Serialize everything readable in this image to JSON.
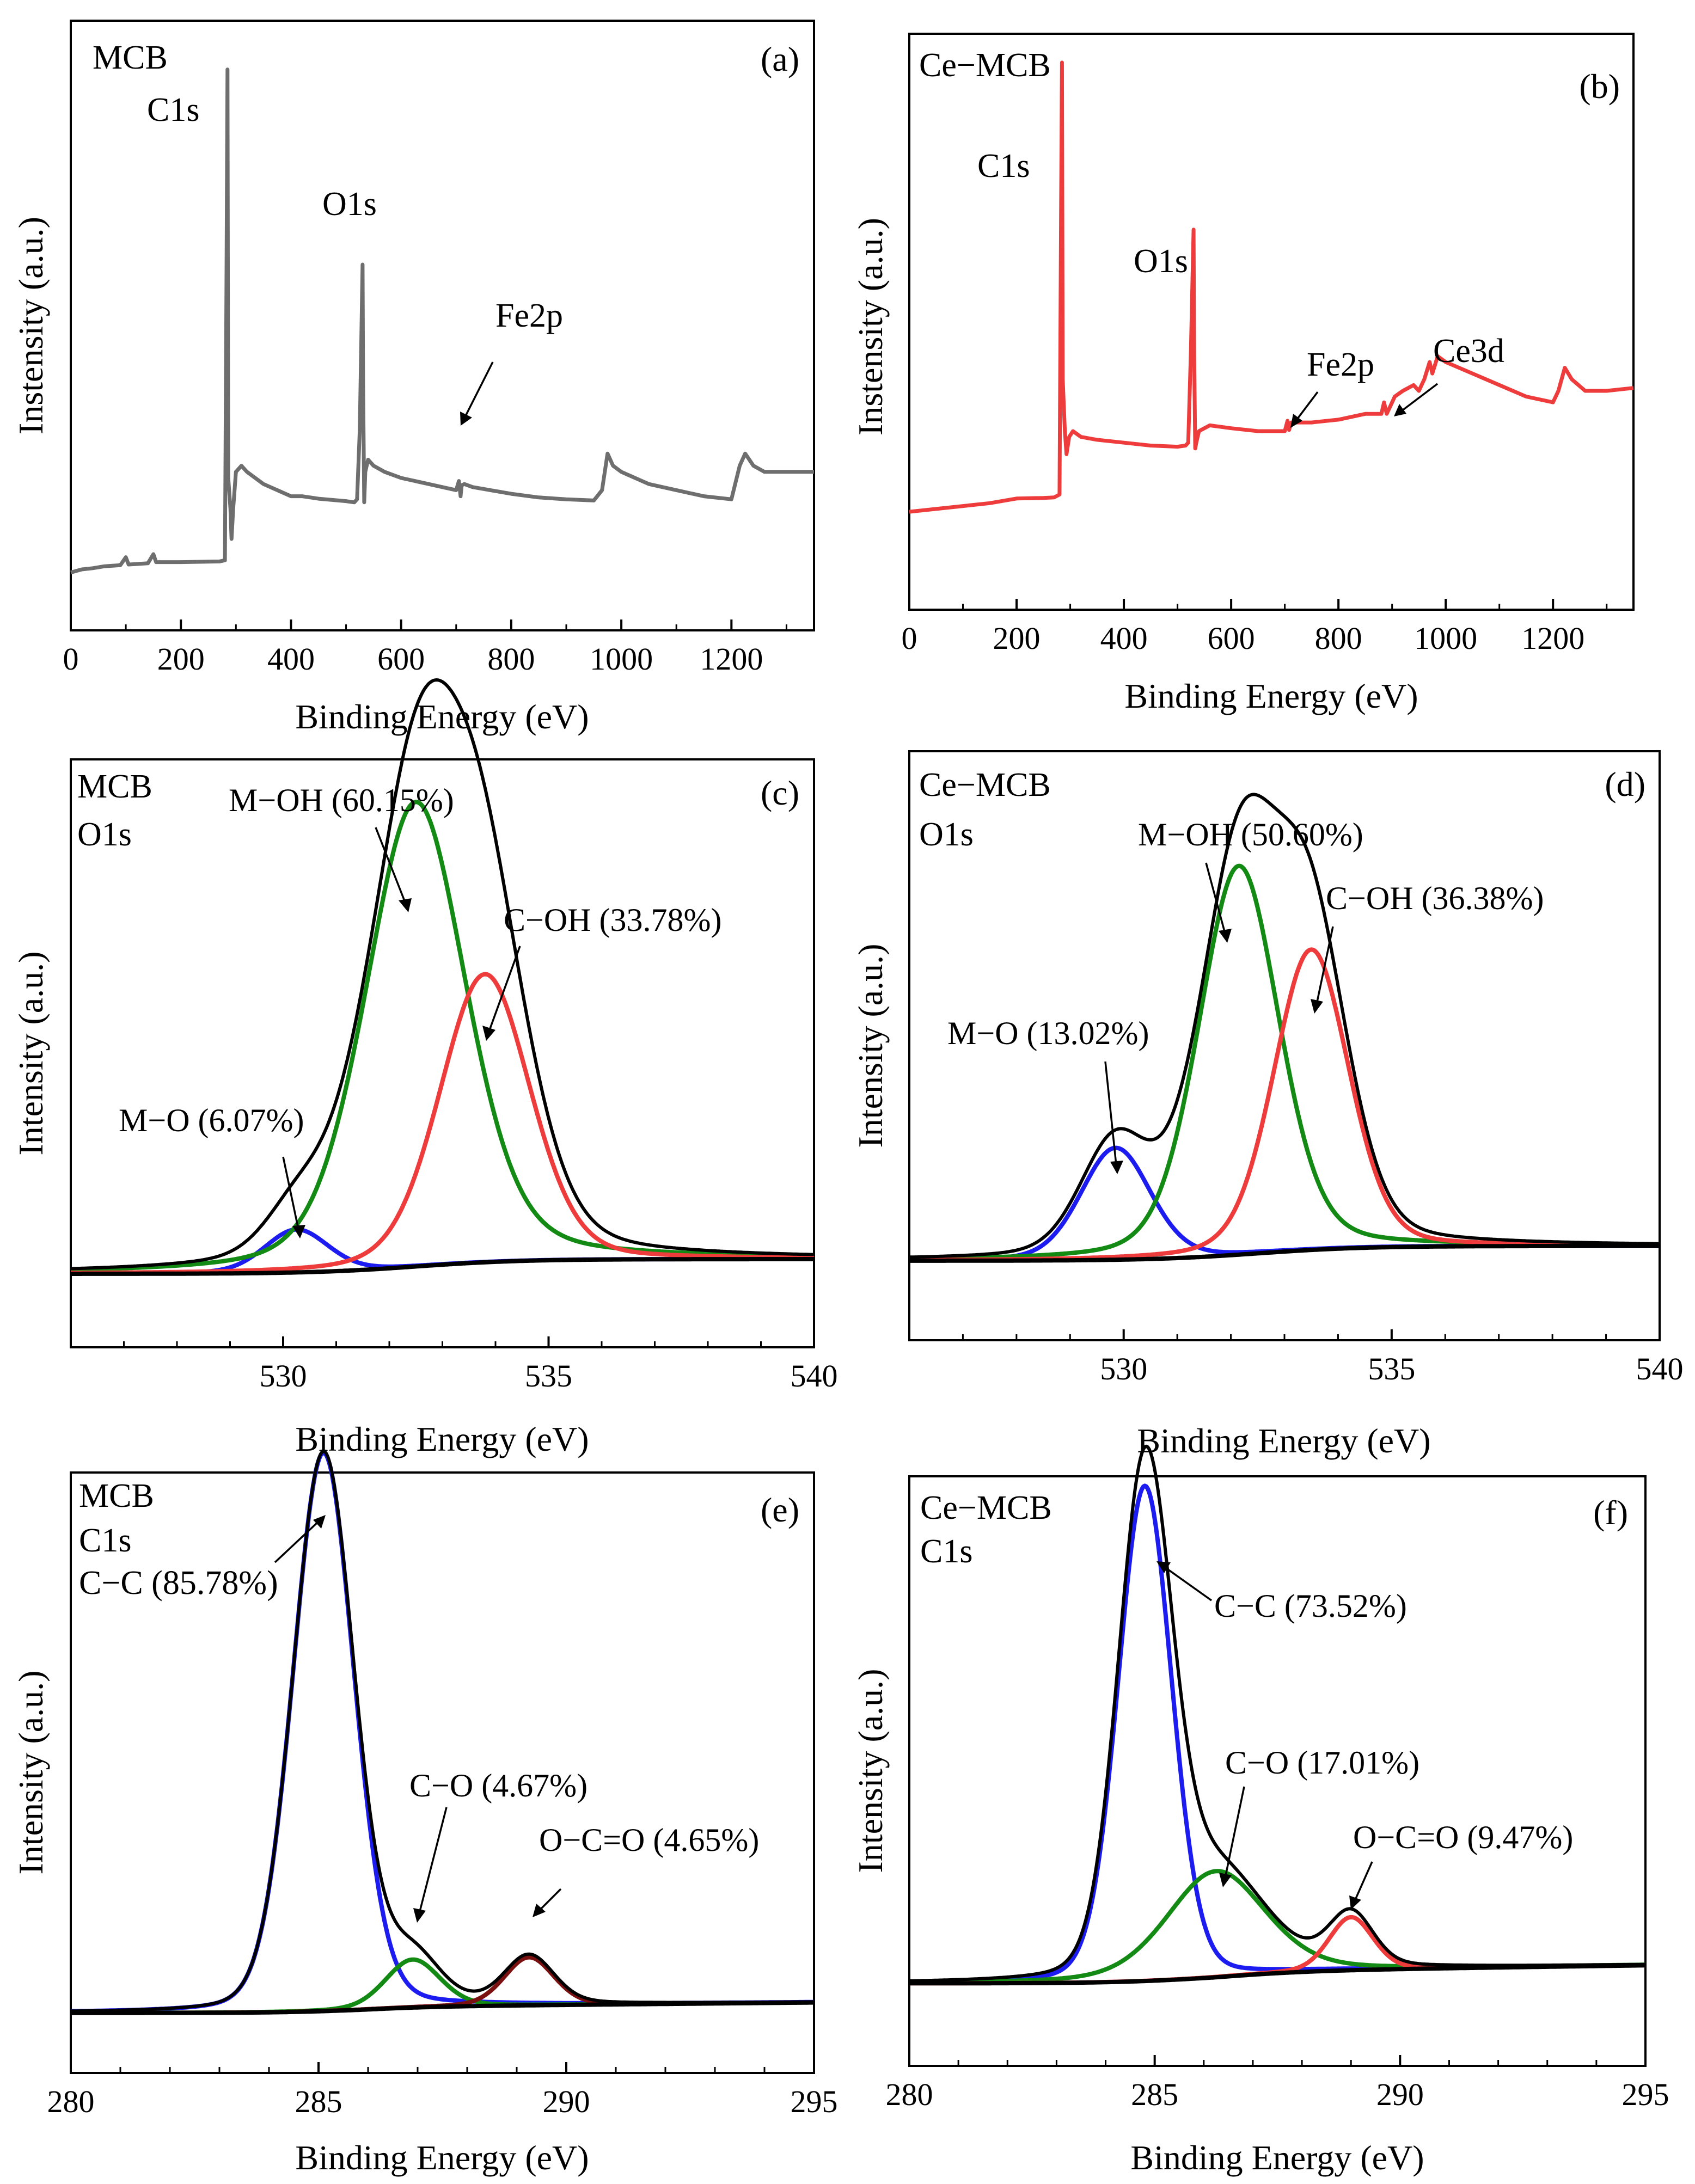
{
  "figure": {
    "panel_labels": [
      "(a)",
      "(b)",
      "(c)",
      "(d)",
      "(e)",
      "(f)"
    ],
    "colors": {
      "gray": "#6e6e6e",
      "red": "#ee3b3b",
      "green": "#138a13",
      "blue": "#1c1cf0",
      "black": "#000000",
      "darkred": "#7a1010"
    }
  },
  "chart_data": [
    {
      "id": "a",
      "type": "line",
      "label": "(a)",
      "titles": [
        "MCB"
      ],
      "xlabel": "Binding Energy (eV)",
      "ylabel": "Instensity (a.u.)",
      "xlim": [
        0,
        1350
      ],
      "ylim": [
        0,
        100
      ],
      "xticks": [
        0,
        200,
        400,
        600,
        800,
        1000,
        1200
      ],
      "xtick_labels": [
        "0",
        "200",
        "400",
        "600",
        "800",
        "1000",
        "1200"
      ],
      "minor_step": 100,
      "minor_from": 100,
      "series": [
        {
          "name": "MCB survey",
          "color": "#6e6e6e",
          "width": 7,
          "x": [
            0,
            20,
            40,
            60,
            90,
            100,
            105,
            140,
            150,
            155,
            200,
            270,
            280,
            283,
            284.6,
            286,
            290,
            292,
            295,
            300,
            310,
            320,
            350,
            400,
            420,
            450,
            500,
            515,
            520,
            525,
            530,
            531,
            533,
            535,
            540,
            550,
            570,
            600,
            650,
            700,
            705,
            708,
            710,
            715,
            730,
            800,
            850,
            900,
            950,
            965,
            975,
            985,
            1000,
            1050,
            1100,
            1150,
            1200,
            1215,
            1225,
            1240,
            1260,
            1300,
            1350
          ],
          "y": [
            9.5,
            10,
            10.2,
            10.5,
            10.7,
            12,
            10.8,
            11,
            12.5,
            11.2,
            11.2,
            11.3,
            11.5,
            60,
            92,
            25,
            20,
            15,
            20,
            26,
            27,
            26,
            24,
            22,
            22,
            21.6,
            21.2,
            21,
            21.5,
            33,
            60,
            40,
            21,
            26,
            28,
            27,
            26,
            25,
            24,
            23,
            24.5,
            22,
            23.8,
            24,
            23.5,
            22.4,
            21.8,
            21.5,
            21.3,
            23,
            29,
            27,
            26,
            24,
            23,
            22,
            21.5,
            27,
            29,
            27,
            26,
            26,
            26
          ]
        }
      ],
      "annotations": [
        {
          "text": "C1s"
        },
        {
          "text": "O1s"
        },
        {
          "text": "Fe2p"
        }
      ]
    },
    {
      "id": "b",
      "type": "line",
      "label": "(b)",
      "titles": [
        "Ce−MCB"
      ],
      "xlabel": "Binding Energy (eV)",
      "ylabel": "Instensity (a.u.)",
      "xlim": [
        0,
        1350
      ],
      "ylim": [
        0,
        100
      ],
      "xticks": [
        0,
        200,
        400,
        600,
        800,
        1000,
        1200
      ],
      "xtick_labels": [
        "0",
        "200",
        "400",
        "600",
        "800",
        "1000",
        "1200"
      ],
      "minor_step": 100,
      "minor_from": 100,
      "series": [
        {
          "name": "Ce-MCB survey",
          "color": "#ee3b3b",
          "width": 7,
          "x": [
            0,
            50,
            100,
            150,
            200,
            250,
            270,
            280,
            283,
            284.6,
            286,
            290,
            293,
            298,
            305,
            320,
            350,
            400,
            450,
            500,
            515,
            520,
            525,
            530,
            531,
            533,
            535,
            540,
            560,
            600,
            650,
            700,
            705,
            708,
            712,
            750,
            800,
            850,
            880,
            885,
            890,
            900,
            905,
            920,
            940,
            950,
            960,
            970,
            975,
            985,
            1000,
            1050,
            1100,
            1150,
            1200,
            1210,
            1222,
            1235,
            1260,
            1300,
            1350
          ],
          "y": [
            17,
            17.5,
            18,
            18.5,
            19.3,
            19.4,
            19.5,
            20,
            70,
            95,
            40,
            31,
            27,
            30,
            31,
            30,
            29.5,
            29,
            28.5,
            28.3,
            28.5,
            29,
            45,
            66,
            45,
            28,
            29,
            31,
            32,
            31.5,
            31,
            31,
            32.8,
            31.2,
            32.5,
            32.5,
            33,
            34,
            34,
            36,
            34,
            36,
            37,
            38,
            39,
            38,
            40,
            43,
            41,
            44,
            43,
            41,
            39,
            37,
            36,
            38,
            42,
            40,
            38,
            38,
            38.5
          ]
        }
      ],
      "annotations": [
        {
          "text": "C1s"
        },
        {
          "text": "O1s"
        },
        {
          "text": "Fe2p"
        },
        {
          "text": "Ce3d"
        }
      ]
    },
    {
      "id": "c",
      "type": "line",
      "label": "(c)",
      "titles": [
        "MCB",
        "O1s"
      ],
      "xlabel": "Binding Energy (eV)",
      "ylabel": "Intensity (a.u.)",
      "xlim": [
        526,
        540
      ],
      "ylim": [
        0,
        100
      ],
      "xticks": [
        530,
        535,
        540
      ],
      "xtick_labels": [
        "530",
        "535",
        "540"
      ],
      "minor_step": 1,
      "minor_from": 527,
      "peaks": [
        {
          "name": "M−O",
          "color": "#1c1cf0",
          "center": 530.25,
          "amp": 7.3,
          "sigma": 0.6,
          "frac": 0.2
        },
        {
          "name": "M−OH",
          "color": "#138a13",
          "center": 532.5,
          "amp": 79,
          "sigma": 0.95,
          "frac": 0.3
        },
        {
          "name": "C−OH",
          "color": "#ee3b3b",
          "center": 533.8,
          "amp": 49,
          "sigma": 0.85,
          "frac": 0.2
        }
      ],
      "background": {
        "start": 12.5,
        "end": 15,
        "step_center": 532.5,
        "step_width": 1.0,
        "slope_after": 0.0
      },
      "annotations": [
        {
          "text": "M−OH (60.15%)"
        },
        {
          "text": "C−OH (33.78%)"
        },
        {
          "text": "M−O (6.07%)"
        }
      ]
    },
    {
      "id": "d",
      "type": "line",
      "label": "(d)",
      "titles": [
        "Ce−MCB",
        "O1s"
      ],
      "xlabel": "Binding Energy (eV)",
      "ylabel": "Intensity (a.u.)",
      "xlim": [
        526,
        540
      ],
      "ylim": [
        0,
        100
      ],
      "xticks": [
        530,
        535,
        540
      ],
      "xtick_labels": [
        "530",
        "535",
        "540"
      ],
      "minor_step": 1,
      "minor_from": 527,
      "peaks": [
        {
          "name": "M−O",
          "color": "#1c1cf0",
          "center": 529.85,
          "amp": 19,
          "sigma": 0.65,
          "frac": 0.2
        },
        {
          "name": "M−OH",
          "color": "#138a13",
          "center": 532.15,
          "amp": 66,
          "sigma": 0.75,
          "frac": 0.25
        },
        {
          "name": "C−OH",
          "color": "#ee3b3b",
          "center": 533.5,
          "amp": 51,
          "sigma": 0.7,
          "frac": 0.2
        }
      ],
      "background": {
        "start": 13.5,
        "end": 16,
        "step_center": 532.5,
        "step_width": 1.0,
        "slope_after": 0.0
      },
      "annotations": [
        {
          "text": "M−OH (50.60%)"
        },
        {
          "text": "C−OH (36.38%)"
        },
        {
          "text": "M−O (13.02%)"
        }
      ]
    },
    {
      "id": "e",
      "type": "line",
      "label": "(e)",
      "titles": [
        "MCB",
        "C1s",
        "C−C (85.78%)"
      ],
      "xlabel": "Binding Energy (eV)",
      "ylabel": "Intensity (a.u.)",
      "xlim": [
        280,
        295
      ],
      "ylim": [
        0,
        100
      ],
      "xticks": [
        280,
        285,
        290,
        295
      ],
      "xtick_labels": [
        "280",
        "285",
        "290",
        "295"
      ],
      "minor_step": 1,
      "minor_from": 281,
      "peaks": [
        {
          "name": "C−C",
          "color": "#1c1cf0",
          "center": 285.1,
          "amp": 93,
          "sigma": 0.62,
          "frac": 0.15
        },
        {
          "name": "C−O",
          "color": "#138a13",
          "center": 286.9,
          "amp": 8,
          "sigma": 0.55,
          "frac": 0.2
        },
        {
          "name": "O−C=O",
          "color": "#7a1010",
          "center": 289.25,
          "amp": 8,
          "sigma": 0.5,
          "frac": 0.2
        }
      ],
      "background": {
        "start": 10,
        "end": 11,
        "step_center": 285.8,
        "step_width": 0.8,
        "slope_after": 0.08
      },
      "annotations": [
        {
          "text": "C−O (4.67%)"
        },
        {
          "text": "O−C=O (4.65%)"
        }
      ]
    },
    {
      "id": "f",
      "type": "line",
      "label": "(f)",
      "titles": [
        "Ce−MCB",
        "C1s"
      ],
      "xlabel": "Binding Energy (eV)",
      "ylabel": "Intensity (a.u.)",
      "xlim": [
        280,
        295
      ],
      "ylim": [
        0,
        100
      ],
      "xticks": [
        280,
        285,
        290,
        295
      ],
      "xtick_labels": [
        "280",
        "285",
        "290",
        "295"
      ],
      "minor_step": 1,
      "minor_from": 281,
      "peaks": [
        {
          "name": "C−C",
          "color": "#1c1cf0",
          "center": 284.8,
          "amp": 84,
          "sigma": 0.55,
          "frac": 0.15
        },
        {
          "name": "C−O",
          "color": "#138a13",
          "center": 286.25,
          "amp": 18,
          "sigma": 1.0,
          "frac": 0.3
        },
        {
          "name": "O−C=O",
          "color": "#ee3b3b",
          "center": 289.0,
          "amp": 9,
          "sigma": 0.45,
          "frac": 0.2
        }
      ],
      "background": {
        "start": 14,
        "end": 16,
        "step_center": 286.2,
        "step_width": 1.0,
        "slope_after": 0.12
      },
      "annotations": [
        {
          "text": "C−C (73.52%)"
        },
        {
          "text": "C−O (17.01%)"
        },
        {
          "text": "O−C=O (9.47%)"
        }
      ]
    }
  ]
}
